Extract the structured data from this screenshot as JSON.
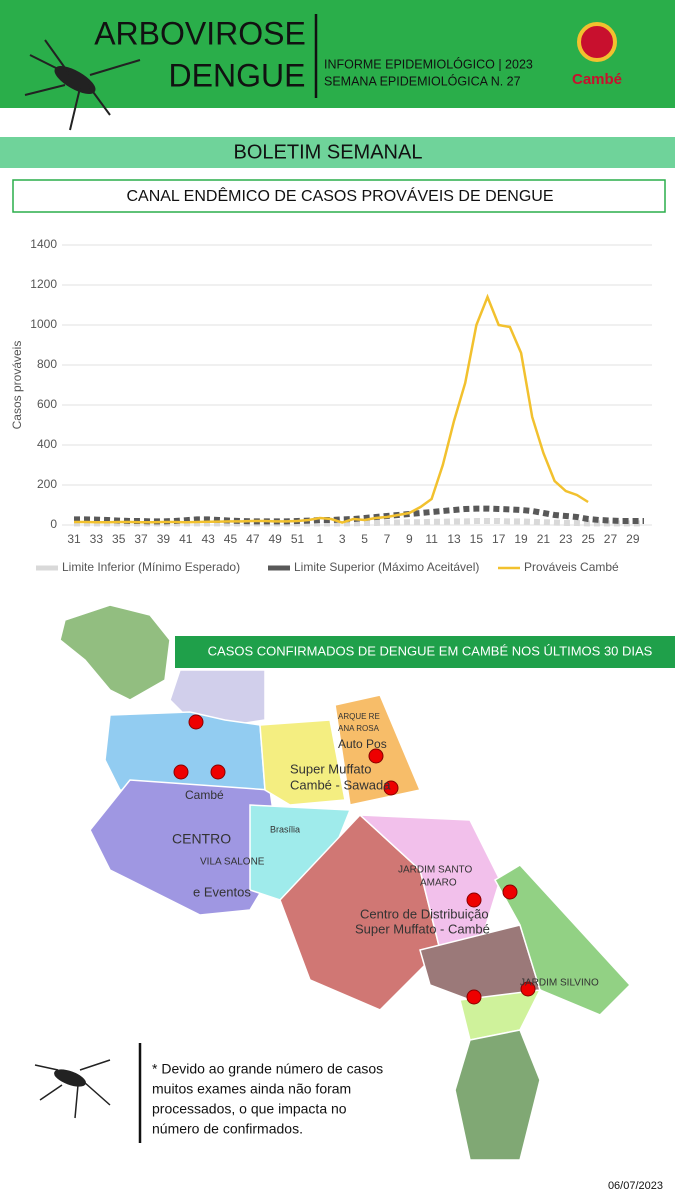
{
  "header": {
    "title_line1": "ARBOVIROSE",
    "title_line2": "DENGUE",
    "info_line1": "INFORME EPIDEMIOLÓGICO | 2023",
    "info_line2": "SEMANA EPIDEMIOLÓGICA  N. 27",
    "logo": "Cambé"
  },
  "banner": "BOLETIM SEMANAL",
  "chart_data": {
    "type": "line",
    "title": "CANAL ENDÊMICO DE CASOS PROVÁVEIS DE DENGUE",
    "ylabel": "Casos prováveis",
    "categories": [
      "31",
      null,
      "33",
      null,
      "35",
      null,
      "37",
      null,
      "39",
      null,
      "41",
      null,
      "43",
      null,
      "45",
      null,
      "47",
      null,
      "49",
      null,
      "51",
      null,
      "1",
      null,
      "3",
      null,
      "5",
      null,
      "7",
      null,
      "9",
      null,
      "11",
      null,
      "13",
      null,
      "15",
      null,
      "17",
      null,
      "19",
      null,
      "21",
      null,
      "23",
      null,
      "25",
      null,
      "27",
      null,
      "29",
      null
    ],
    "series": [
      {
        "name": "Limite Inferior (Mínimo Esperado)",
        "color": "#d9d9d9",
        "style": "dashed",
        "values": [
          8,
          8,
          8,
          8,
          8,
          8,
          8,
          8,
          8,
          8,
          8,
          8,
          8,
          8,
          8,
          8,
          8,
          8,
          8,
          8,
          8,
          8,
          8,
          8,
          8,
          9,
          10,
          10,
          12,
          12,
          14,
          14,
          16,
          16,
          18,
          18,
          20,
          20,
          20,
          18,
          18,
          16,
          14,
          12,
          10,
          10,
          8,
          8,
          8,
          8,
          8,
          8
        ]
      },
      {
        "name": "Limite Superior (Máximo Aceitável)",
        "color": "#595959",
        "style": "dashed",
        "values": [
          28,
          28,
          27,
          25,
          22,
          20,
          20,
          18,
          18,
          20,
          24,
          28,
          28,
          25,
          22,
          20,
          18,
          18,
          18,
          18,
          20,
          22,
          25,
          25,
          28,
          30,
          35,
          40,
          45,
          50,
          55,
          60,
          65,
          70,
          75,
          80,
          82,
          82,
          80,
          78,
          75,
          70,
          60,
          50,
          45,
          40,
          30,
          25,
          22,
          20,
          20,
          20
        ]
      },
      {
        "name": "Prováveis Cambé",
        "color": "#f2c12e",
        "style": "solid",
        "values": [
          15,
          15,
          14,
          14,
          15,
          15,
          14,
          14,
          15,
          15,
          14,
          15,
          16,
          17,
          18,
          18,
          20,
          20,
          18,
          18,
          20,
          25,
          35,
          30,
          12,
          30,
          25,
          35,
          40,
          50,
          60,
          90,
          130,
          300,
          520,
          710,
          1000,
          1140,
          1000,
          990,
          860,
          540,
          360,
          220,
          170,
          150,
          115,
          null,
          null,
          null,
          null,
          null
        ]
      }
    ],
    "ylim": [
      0,
      1400
    ],
    "yticks": [
      0,
      200,
      400,
      600,
      800,
      1000,
      1200,
      1400
    ],
    "grid": true,
    "legend": "bottom"
  },
  "map": {
    "title": "CASOS CONFIRMADOS DE DENGUE EM CAMBÉ NOS ÚLTIMOS 30 DIAS",
    "labels": [
      "ARQUE RE",
      "ANA ROSA",
      "Auto Pos",
      "Super Muffato",
      "Cambé - Sawada",
      "Cambé",
      "CENTRO",
      "VILA SALONE",
      "e Eventos",
      "Brasília",
      "JARDIM SANTO",
      "AMARO",
      "Centro de Distribuição",
      "Super Muffato - Cambé",
      "JARDIM SILVINO"
    ]
  },
  "note": [
    "* Devido ao grande número de casos",
    "muitos exames ainda não foram",
    "processados, o que impacta no",
    "número de confirmados."
  ],
  "date": "06/07/2023"
}
